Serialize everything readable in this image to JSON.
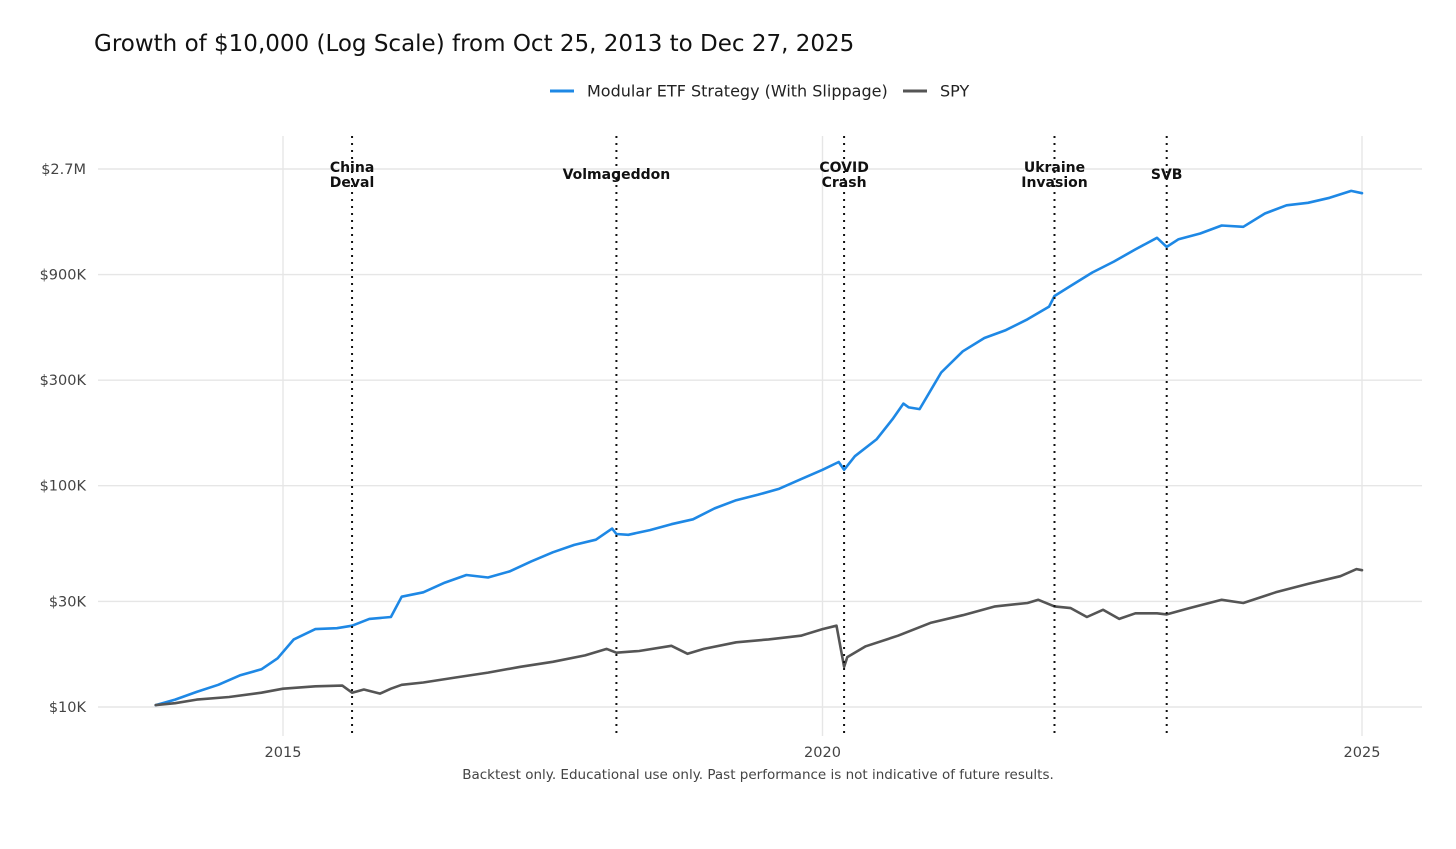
{
  "chart_data": {
    "type": "line",
    "title": "Growth of $10,000 (Log Scale) from Oct 25, 2013 to Dec 27, 2025",
    "caption": "Backtest only. Educational use only. Past performance is not indicative of future results.",
    "xlabel": "",
    "ylabel": "",
    "y_scale": "log",
    "x_range": [
      2013.0,
      2025.6
    ],
    "ylim": [
      8500,
      3600000
    ],
    "grid": true,
    "legend_position": "top",
    "x_ticks": [
      {
        "value": 2015,
        "label": "2015"
      },
      {
        "value": 2020,
        "label": "2020"
      },
      {
        "value": 2025,
        "label": "2025"
      }
    ],
    "y_ticks": [
      {
        "value": 10000,
        "label": "$10K"
      },
      {
        "value": 30000,
        "label": "$30K"
      },
      {
        "value": 100000,
        "label": "$100K"
      },
      {
        "value": 300000,
        "label": "$300K"
      },
      {
        "value": 900000,
        "label": "$900K"
      },
      {
        "value": 2700000,
        "label": "$2.7M"
      }
    ],
    "events": [
      {
        "date": 2015.64,
        "label": [
          "China",
          "Deval"
        ]
      },
      {
        "date": 2018.09,
        "label": [
          "Volmageddon"
        ]
      },
      {
        "date": 2020.2,
        "label": [
          "COVID",
          "Crash"
        ]
      },
      {
        "date": 2022.15,
        "label": [
          "Ukraine",
          "Invasion"
        ]
      },
      {
        "date": 2023.19,
        "label": [
          "SVB"
        ]
      }
    ],
    "series": [
      {
        "name": "Modular ETF Strategy (With Slippage)",
        "color": "#1e88e5",
        "x": [
          2013.82,
          2014.0,
          2014.2,
          2014.4,
          2014.6,
          2014.8,
          2014.95,
          2015.1,
          2015.3,
          2015.5,
          2015.64,
          2015.8,
          2016.0,
          2016.1,
          2016.3,
          2016.5,
          2016.7,
          2016.9,
          2017.1,
          2017.3,
          2017.5,
          2017.7,
          2017.9,
          2018.05,
          2018.09,
          2018.2,
          2018.4,
          2018.6,
          2018.8,
          2019.0,
          2019.2,
          2019.4,
          2019.6,
          2019.8,
          2020.0,
          2020.15,
          2020.2,
          2020.3,
          2020.5,
          2020.65,
          2020.75,
          2020.8,
          2020.9,
          2021.1,
          2021.3,
          2021.5,
          2021.7,
          2021.9,
          2022.1,
          2022.15,
          2022.3,
          2022.5,
          2022.7,
          2022.9,
          2023.1,
          2023.19,
          2023.3,
          2023.5,
          2023.7,
          2023.9,
          2024.1,
          2024.3,
          2024.5,
          2024.7,
          2024.9,
          2025.0
        ],
        "y": [
          10200,
          10800,
          11700,
          12600,
          13900,
          14800,
          16600,
          20200,
          22500,
          22700,
          23300,
          25000,
          25500,
          31500,
          33000,
          36500,
          39500,
          38500,
          41000,
          45500,
          50000,
          54000,
          57000,
          64000,
          60500,
          60000,
          63000,
          67000,
          70500,
          79000,
          86000,
          91000,
          97000,
          107000,
          118000,
          128000,
          118000,
          136000,
          162000,
          200000,
          235000,
          226000,
          222000,
          325000,
          405000,
          465000,
          505000,
          565000,
          645000,
          720000,
          800000,
          920000,
          1030000,
          1170000,
          1320000,
          1200000,
          1300000,
          1380000,
          1500000,
          1480000,
          1700000,
          1850000,
          1900000,
          2000000,
          2150000,
          2100000
        ]
      },
      {
        "name": "SPY",
        "color": "#555555",
        "x": [
          2013.82,
          2014.0,
          2014.2,
          2014.5,
          2014.8,
          2015.0,
          2015.3,
          2015.55,
          2015.64,
          2015.75,
          2015.9,
          2016.0,
          2016.1,
          2016.3,
          2016.6,
          2016.9,
          2017.2,
          2017.5,
          2017.8,
          2018.0,
          2018.09,
          2018.3,
          2018.6,
          2018.75,
          2018.9,
          2019.2,
          2019.5,
          2019.8,
          2020.0,
          2020.13,
          2020.2,
          2020.23,
          2020.4,
          2020.7,
          2021.0,
          2021.3,
          2021.6,
          2021.9,
          2022.0,
          2022.15,
          2022.3,
          2022.45,
          2022.6,
          2022.75,
          2022.9,
          2023.1,
          2023.19,
          2023.4,
          2023.7,
          2023.9,
          2024.2,
          2024.5,
          2024.8,
          2024.95,
          2025.0
        ],
        "y": [
          10200,
          10400,
          10800,
          11100,
          11600,
          12100,
          12400,
          12500,
          11600,
          12000,
          11500,
          12100,
          12600,
          12900,
          13600,
          14300,
          15200,
          16000,
          17100,
          18300,
          17600,
          17900,
          18900,
          17400,
          18300,
          19600,
          20200,
          21000,
          22500,
          23300,
          15200,
          16800,
          18800,
          21000,
          24000,
          26000,
          28500,
          29500,
          30500,
          28500,
          28000,
          25500,
          27500,
          25000,
          26500,
          26500,
          26200,
          28000,
          30500,
          29500,
          33000,
          36000,
          39000,
          42000,
          41500
        ]
      }
    ]
  }
}
